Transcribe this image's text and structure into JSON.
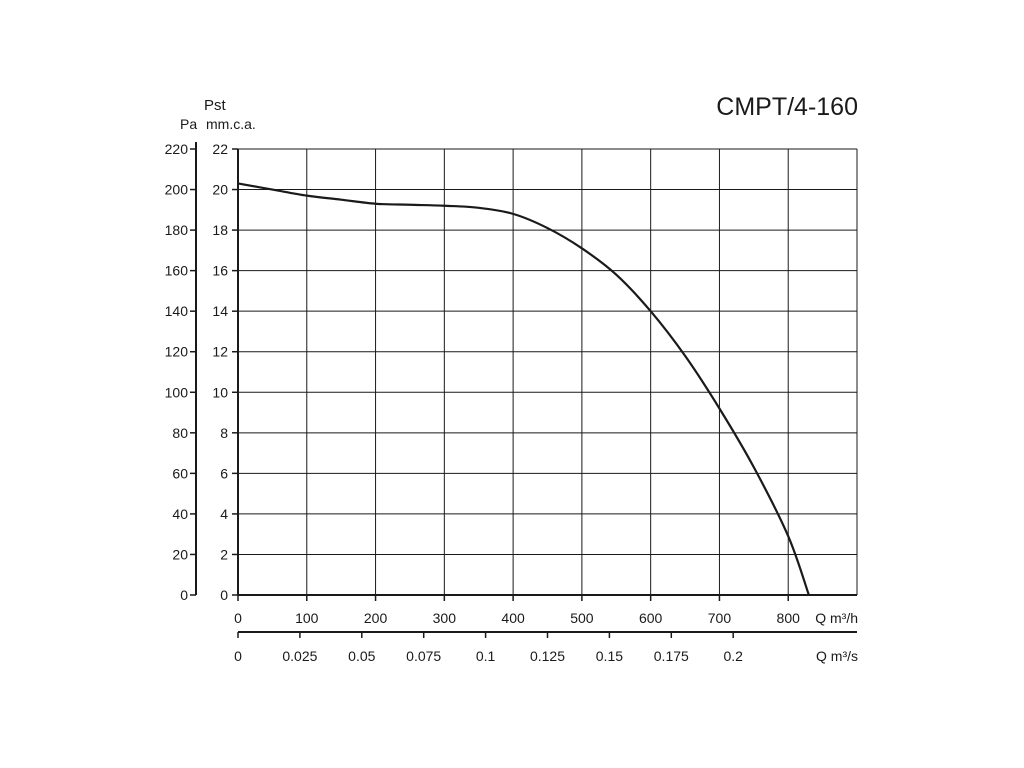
{
  "chart_data": {
    "type": "line",
    "title": "CMPT/4-160",
    "y_quantity_label": "Pst",
    "y_unit_left": "Pa",
    "y_unit_right": "mm.c.a.",
    "x_unit_top": "Q m³/h",
    "x_unit_bottom": "Q m³/s",
    "x_range_m3h": [
      0,
      900
    ],
    "y_range_mmca": [
      0,
      22
    ],
    "y_range_pa": [
      0,
      220
    ],
    "x_ticks_m3h": [
      "0",
      "100",
      "200",
      "300",
      "400",
      "500",
      "600",
      "700",
      "800"
    ],
    "x_ticks_m3s": [
      "0",
      "0.025",
      "0.05",
      "0.075",
      "0.1",
      "0.125",
      "0.15",
      "0.175",
      "0.2"
    ],
    "y_ticks_pa": [
      "0",
      "20",
      "40",
      "60",
      "80",
      "100",
      "120",
      "140",
      "160",
      "180",
      "200",
      "220"
    ],
    "y_ticks_mmca": [
      "0",
      "2",
      "4",
      "6",
      "8",
      "10",
      "12",
      "14",
      "16",
      "18",
      "20",
      "22"
    ],
    "grid": true,
    "series": [
      {
        "x": [
          0,
          50,
          100,
          150,
          200,
          250,
          300,
          350,
          400,
          450,
          500,
          550,
          600,
          650,
          700,
          750,
          800,
          830
        ],
        "values": [
          20.3,
          20.0,
          19.7,
          19.5,
          19.3,
          19.25,
          19.2,
          19.1,
          18.8,
          18.1,
          17.1,
          15.8,
          14.0,
          11.8,
          9.2,
          6.3,
          2.9,
          0
        ]
      }
    ]
  }
}
